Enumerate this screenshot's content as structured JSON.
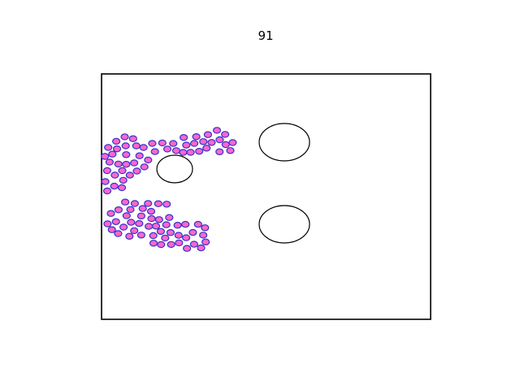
{
  "scene": {
    "title": "91",
    "colors": {
      "background": "#ffffff",
      "border": "#000000",
      "particle_fill": "#ff66cc",
      "particle_edge": "#3333cc",
      "obstacle_fill": "#ffffff",
      "obstacle_edge": "#000000"
    }
  }
}
